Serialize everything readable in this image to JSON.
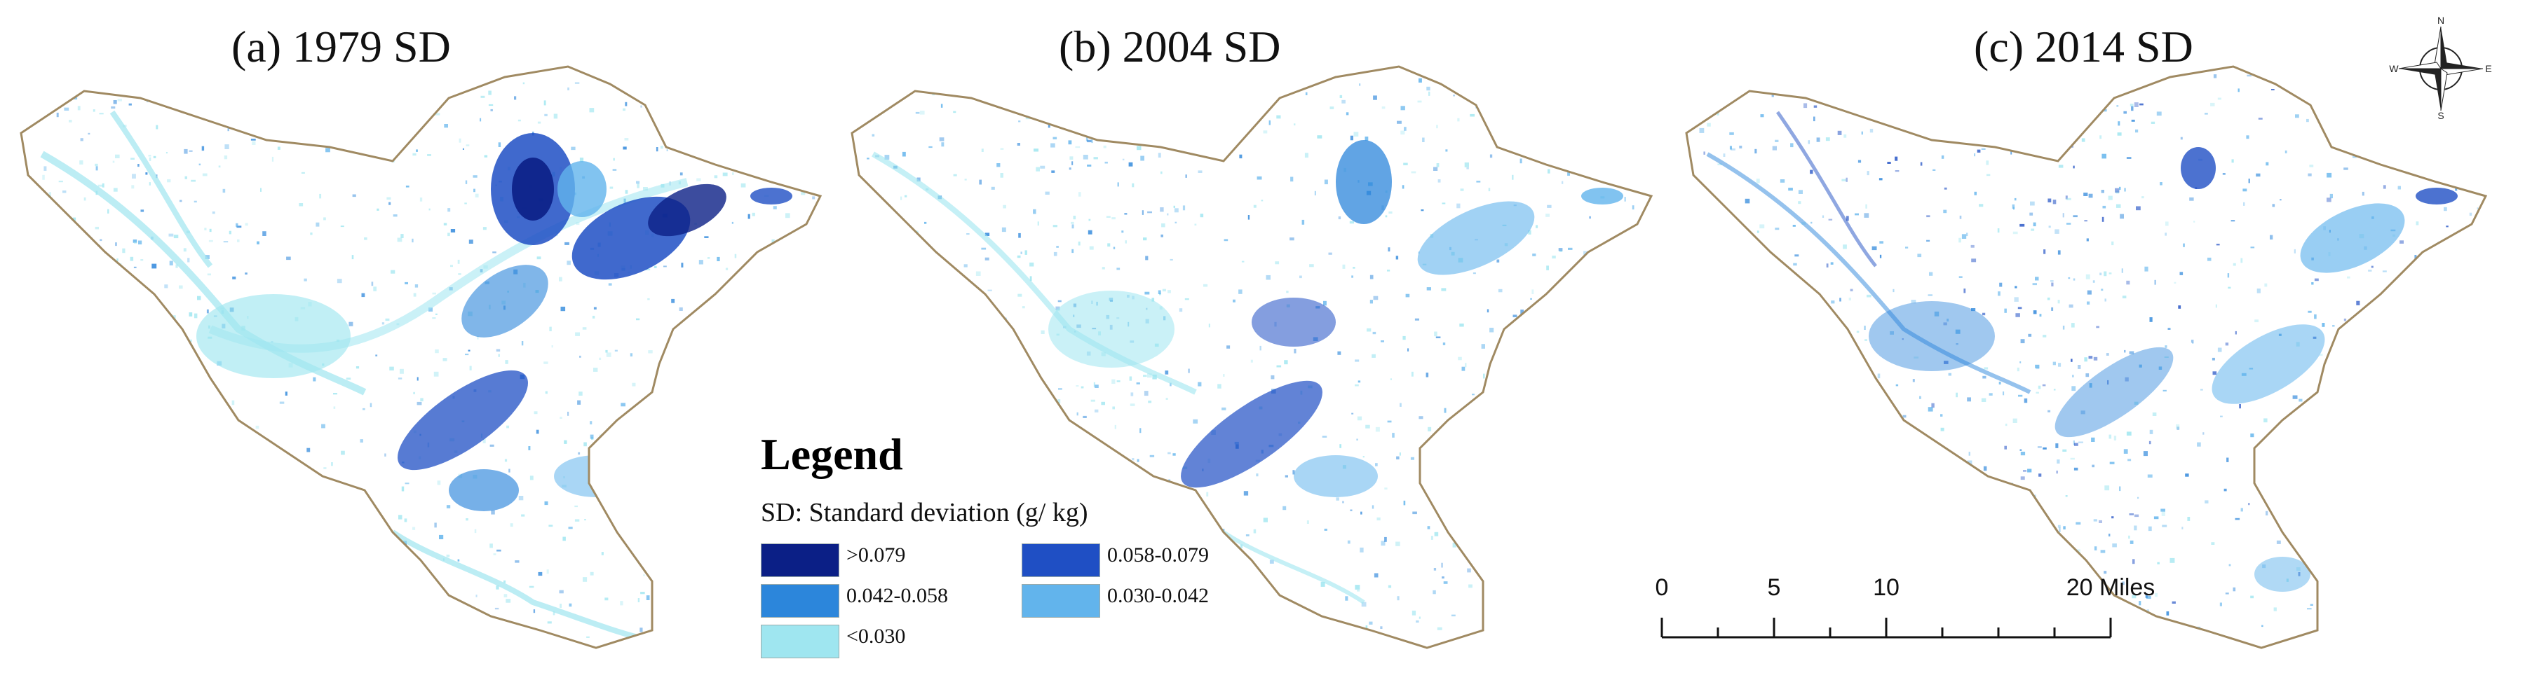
{
  "panels": [
    {
      "title": "(a) 1979 SD"
    },
    {
      "title": "(b) 2004 SD"
    },
    {
      "title": "(c) 2014 SD"
    }
  ],
  "legend": {
    "heading": "Legend",
    "subtitle": "SD: Standard deviation (g/ kg)",
    "classes": [
      {
        "label": ">0.079",
        "color": "#0b1f86"
      },
      {
        "label": "0.058-0.079",
        "color": "#1f4fc4"
      },
      {
        "label": "0.042-0.058",
        "color": "#2c86db"
      },
      {
        "label": "0.030-0.042",
        "color": "#62b4ec"
      },
      {
        "label": "<0.030",
        "color": "#9fe6f0"
      }
    ]
  },
  "scale_bar": {
    "ticks": [
      "0",
      "5",
      "10",
      "20 Miles"
    ]
  },
  "compass": {
    "n": "N",
    "s": "S",
    "e": "E",
    "w": "W"
  },
  "colors": {
    "boundary": "#a08a62",
    "background": "#ffffff"
  }
}
